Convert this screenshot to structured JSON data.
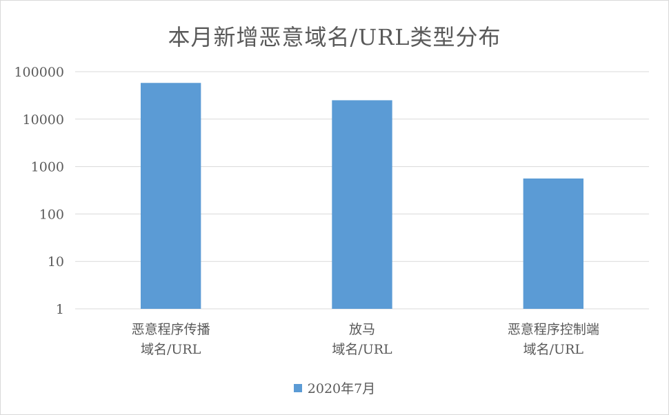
{
  "chart_data": {
    "type": "bar",
    "title": "本月新增恶意域名/URL类型分布",
    "scale": "log",
    "ylim": [
      1,
      100000
    ],
    "yticks": [
      "1",
      "10",
      "100",
      "1000",
      "10000",
      "100000"
    ],
    "categories": [
      [
        "恶意程序传播",
        "域名/URL"
      ],
      [
        "放马",
        "域名/URL"
      ],
      [
        "恶意程序控制端",
        "域名/URL"
      ]
    ],
    "series": [
      {
        "name": "2020年7月",
        "values": [
          58000,
          25000,
          560
        ],
        "color": "#5b9bd5"
      }
    ],
    "grid": true,
    "legend_position": "bottom"
  }
}
